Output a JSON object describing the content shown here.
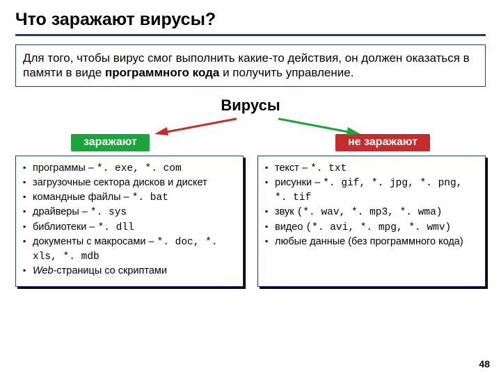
{
  "title": "Что заражают вирусы?",
  "intro_parts": {
    "p1": "Для того, чтобы вирус смог выполнить какие-то действия, он должен оказаться в памяти в виде ",
    "bold": "программного кода",
    "p2": " и получить управление."
  },
  "center_label": "Вирусы",
  "tags": {
    "left": {
      "label": "заражают",
      "bg": "#1aa53a"
    },
    "right": {
      "label": "не заражают",
      "bg": "#c62c2c"
    }
  },
  "arrows": {
    "left_color": "#c62c2c",
    "right_color": "#1aa53a"
  },
  "left_items": [
    {
      "text": "программы – ",
      "mono": "*. exe, *. com"
    },
    {
      "text": "загрузочные сектора дисков и дискет"
    },
    {
      "text": "командные файлы – ",
      "mono": "*. bat"
    },
    {
      "text": "драйверы – ",
      "mono": "*. sys"
    },
    {
      "text": "библиотеки – ",
      "mono": "*. dll"
    },
    {
      "text": "документы с макросами – ",
      "mono": "*. doc, *. xls, *. mdb"
    },
    {
      "italic": "Web",
      "text": "-страницы со скриптами"
    }
  ],
  "right_items": [
    {
      "text": "текст – ",
      "mono": "*. txt"
    },
    {
      "text": "рисунки – ",
      "mono": "*. gif, *. jpg, *. png, *. tif"
    },
    {
      "text": "звук ",
      "mono": "(*. wav, *. mp3, *. wma)"
    },
    {
      "text": "видео ",
      "mono": "(*. avi, *. mpg, *. wmv)"
    },
    {
      "text": "любые данные (без программного кода)"
    }
  ],
  "page_number": "48",
  "colors": {
    "rule": "#1f3a8a",
    "box_border": "#1f3a8a",
    "shadow": "#000000"
  }
}
